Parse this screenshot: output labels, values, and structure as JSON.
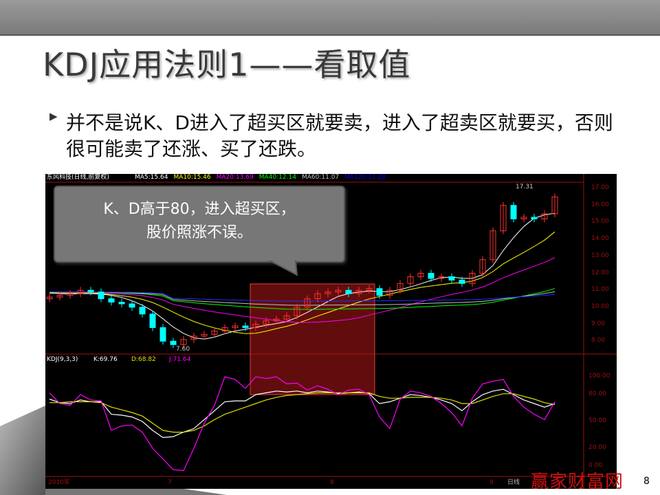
{
  "slide": {
    "title": "KDJ应用法则1——看取值",
    "bullet_icon": "triangle-right-icon",
    "body": "并不是说K、D进入了超买区就要卖，进入了超卖区就要买，否则很可能卖了还涨、买了还跌。",
    "page_number": "8",
    "watermark": "赢家财富网"
  },
  "callout": {
    "line1": "K、D高于80，进入超买区，",
    "line2": "股价照涨不误。"
  },
  "chart_header": {
    "stock": "东风科技(日线,前复权)",
    "ma": [
      {
        "label": "MA5:15.64",
        "color": "#ffffff"
      },
      {
        "label": "MA10:15.46",
        "color": "#ffff00"
      },
      {
        "label": "MA20:13.69",
        "color": "#ff00ff"
      },
      {
        "label": "MA40:12.14",
        "color": "#00ff00"
      },
      {
        "label": "MA60:11.07",
        "color": "#c0c0c0"
      },
      {
        "label": "MA120:11.28",
        "color": "#0000ff"
      }
    ],
    "kdj_label": "KDJ(9,3,3)",
    "k_label": "K:69.76",
    "d_label": "D:68.82",
    "j_label": "J:71.64",
    "high_label": "17.31",
    "low_label": "7.60",
    "period": "日线"
  },
  "chart_data": {
    "type": "candlestick",
    "price_axis": [
      "17.00",
      "16.00",
      "15.00",
      "14.00",
      "13.00",
      "12.00",
      "11.00",
      "10.00",
      "9.00",
      "8.00"
    ],
    "ylim": [
      7.2,
      17.5
    ],
    "kdj_axis": [
      "100.00",
      "80.00",
      "50.00",
      "20.00",
      "0.00"
    ],
    "kdj_ylim": [
      -8,
      110
    ],
    "x_ticks": [
      "2010年",
      "7",
      "8",
      "9"
    ],
    "closes": [
      10.6,
      10.7,
      10.8,
      11.0,
      10.9,
      10.5,
      10.3,
      10.2,
      10.0,
      9.6,
      8.8,
      8.0,
      7.8,
      8.1,
      8.3,
      8.4,
      8.6,
      8.8,
      8.9,
      8.8,
      9.0,
      9.2,
      9.3,
      9.5,
      10.0,
      10.5,
      10.8,
      10.9,
      11.0,
      10.8,
      11.0,
      11.1,
      10.7,
      11.0,
      11.4,
      11.8,
      12.0,
      11.7,
      11.8,
      11.6,
      11.4,
      12.0,
      12.8,
      14.5,
      16.0,
      15.2,
      15.3,
      15.2,
      15.5,
      16.5
    ],
    "K": [
      75,
      71,
      70,
      74,
      72,
      72,
      58,
      57,
      55,
      50,
      40,
      32,
      33,
      38,
      42,
      52,
      62,
      72,
      73,
      73,
      80,
      82,
      84,
      83,
      84,
      82,
      84,
      83,
      81,
      82,
      83,
      81,
      70,
      72,
      76,
      80,
      79,
      77,
      74,
      70,
      62,
      72,
      80,
      84,
      86,
      80,
      74,
      70,
      66,
      70
    ],
    "D": [
      71,
      71,
      72,
      72,
      72,
      71,
      66,
      63,
      60,
      56,
      48,
      40,
      38,
      38,
      40,
      45,
      52,
      58,
      62,
      66,
      70,
      74,
      77,
      79,
      80,
      81,
      82,
      82,
      82,
      82,
      82,
      82,
      78,
      76,
      76,
      77,
      77,
      77,
      76,
      74,
      70,
      70,
      74,
      78,
      81,
      81,
      78,
      75,
      71,
      69
    ],
    "J": [
      82,
      70,
      68,
      80,
      74,
      73,
      40,
      45,
      46,
      38,
      20,
      8,
      -4,
      -5,
      20,
      48,
      68,
      100,
      97,
      87,
      100,
      98,
      100,
      92,
      93,
      85,
      90,
      86,
      80,
      85,
      86,
      80,
      55,
      42,
      75,
      84,
      82,
      78,
      70,
      60,
      45,
      76,
      92,
      95,
      97,
      78,
      66,
      58,
      52,
      72
    ],
    "overbought_zone_highlight": {
      "from_index": 20,
      "to_index": 31,
      "color": "#b01818"
    },
    "colors": {
      "up": "#ff3030",
      "down": "#00ffff",
      "K": "#ffffff",
      "D": "#e0e000",
      "J": "#ff00ff",
      "axis": "#a01010"
    }
  }
}
